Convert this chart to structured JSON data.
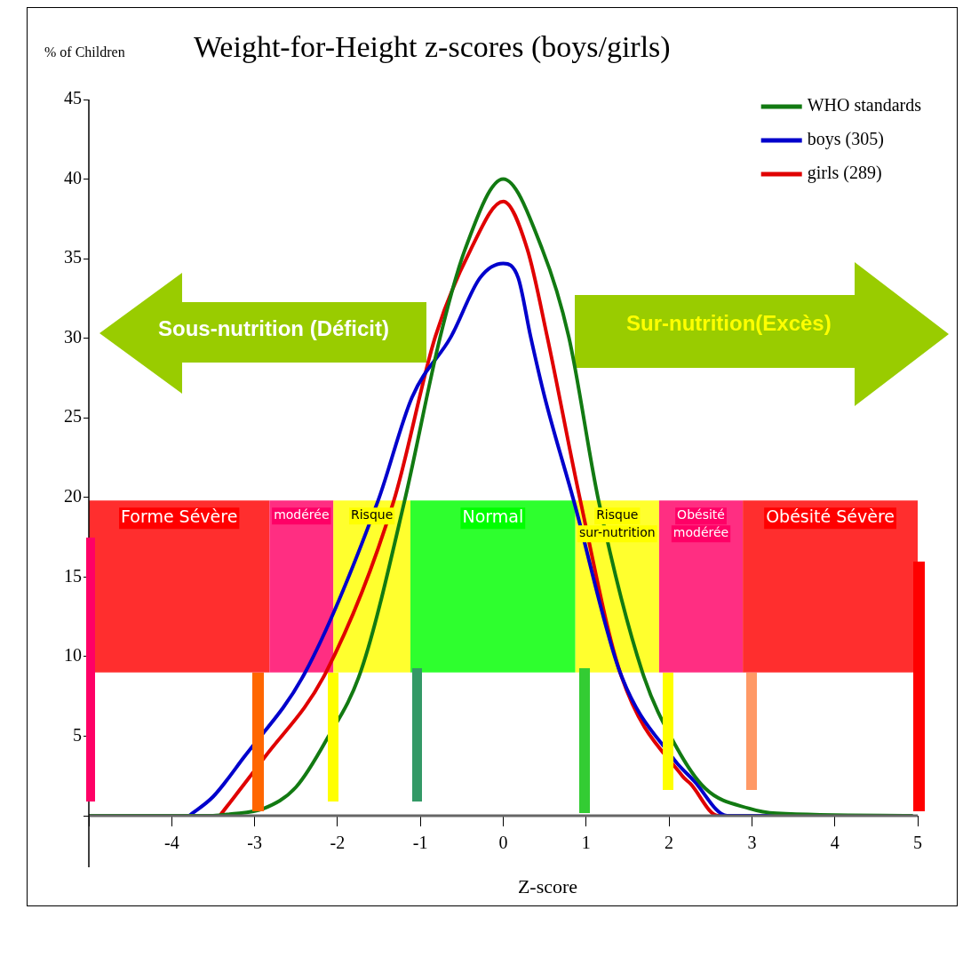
{
  "chart_data": {
    "type": "line",
    "title": "Weight-for-Height z-scores (boys/girls)",
    "ylabel": "% of Children",
    "xlabel": "Z-score",
    "xlim": [
      -5,
      5
    ],
    "xticks": [
      {
        "value": -5,
        "label": null
      },
      -4,
      -3,
      -2,
      -1,
      0,
      1,
      2,
      3,
      4,
      5
    ],
    "ylim": [
      0,
      45
    ],
    "yticks": [
      {
        "value": 0,
        "label": null
      },
      5,
      10,
      15,
      20,
      25,
      30,
      35,
      40,
      45
    ],
    "legend": "top right",
    "grid": false,
    "marker": "none",
    "line_style": "solid",
    "series": [
      {
        "name": "WHO standards",
        "color": "#127a12",
        "x": [
          -5,
          -3.5,
          -3.3,
          -2.89,
          -2.5,
          -2.14,
          -1.71,
          -1.19,
          -0.76,
          -0.46,
          0,
          0.47,
          0.79,
          1.15,
          1.68,
          2.08,
          2.44,
          2.97,
          3.3,
          4.93
        ],
        "values": [
          0,
          0,
          0.1,
          0.45,
          1.8,
          4.7,
          9.2,
          19.8,
          30.1,
          35.6,
          40,
          35.6,
          30.1,
          19.8,
          9,
          4.4,
          1.7,
          0.45,
          0.15,
          0
        ]
      },
      {
        "name": "boys (305)",
        "color": "#0000cc",
        "x": [
          -3.79,
          -3.5,
          -3.14,
          -2.39,
          -1.51,
          -1.1,
          -0.63,
          -0.28,
          0,
          0.18,
          0.33,
          0.5,
          0.85,
          1.41,
          2.05,
          2.3,
          2.7,
          3.26
        ],
        "values": [
          0,
          1.2,
          3.6,
          9,
          19.8,
          26.3,
          30.1,
          33.8,
          34.7,
          33.8,
          30.1,
          26.3,
          19.8,
          9,
          3.6,
          2.2,
          0,
          0
        ]
      },
      {
        "name": "girls (289)",
        "color": "#e00000",
        "x": [
          -3.42,
          -2.89,
          -2.14,
          -1.32,
          -0.82,
          -0.39,
          0,
          0.29,
          0.53,
          0.93,
          1.41,
          2.16,
          2.26,
          2.59,
          3.0
        ],
        "values": [
          0,
          3.6,
          9,
          19.8,
          30.1,
          35.6,
          38.6,
          35.6,
          30.1,
          19.8,
          9,
          2.5,
          2,
          0,
          0
        ]
      }
    ],
    "bands": [
      {
        "axis": "x",
        "from": -5,
        "to": -2.82,
        "label": "Forme Sévère",
        "color": "#ff0000"
      },
      {
        "axis": "x",
        "from": -2.82,
        "to": -2.05,
        "label": "modérée",
        "color": "#ff0066"
      },
      {
        "axis": "x",
        "from": -2.05,
        "to": -1.12,
        "label": "Risque",
        "color": "#ffff00"
      },
      {
        "axis": "x",
        "from": -1.12,
        "to": 0.87,
        "label": "Normal",
        "color": "#00ff00"
      },
      {
        "axis": "x",
        "from": 0.87,
        "to": 1.88,
        "label": "Risque sur-nutrition",
        "color": "#ffff00"
      },
      {
        "axis": "x",
        "from": 1.88,
        "to": 2.89,
        "label": "Obésité modérée",
        "color": "#ff0066"
      },
      {
        "axis": "x",
        "from": 2.89,
        "to": 5,
        "label": "Obésité  Sévère",
        "color": "#ff0000"
      }
    ],
    "annotations": [
      "Sous-nutrition (Déficit)",
      "Sur-nutrition(Excès)"
    ]
  }
}
